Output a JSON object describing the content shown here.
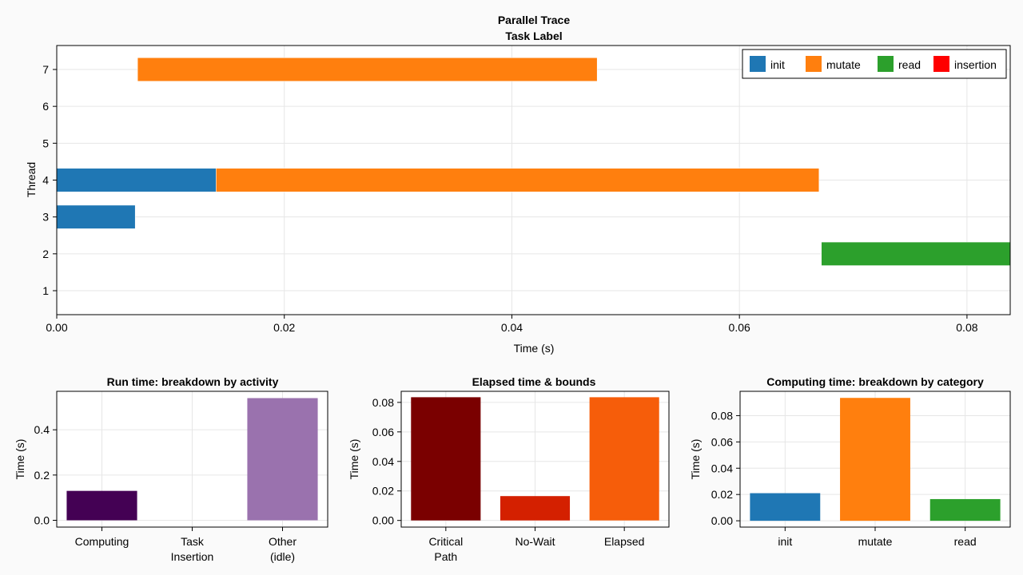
{
  "colors": {
    "init": "#1f77b4",
    "mutate": "#ff7f0e",
    "read": "#2ca02c",
    "insertion": "#ff0000",
    "computing": "#440154",
    "task_insertion": "#3b528b",
    "other_idle": "#9a72ae",
    "critical_path": "#7a0000",
    "no_wait": "#d42000",
    "elapsed": "#f65d0a"
  },
  "chart_data": [
    {
      "type": "gantt",
      "title": "Parallel Trace",
      "subtitle": "Task Label",
      "xlabel": "Time (s)",
      "ylabel": "Thread",
      "xlim": [
        0,
        0.0838
      ],
      "ylim": [
        0.35,
        7.65
      ],
      "xticks": [
        0.0,
        0.02,
        0.04,
        0.06,
        0.08
      ],
      "xtick_labels": [
        "0.00",
        "0.02",
        "0.04",
        "0.06",
        "0.08"
      ],
      "yticks": [
        1,
        2,
        3,
        4,
        5,
        6,
        7
      ],
      "ytick_labels": [
        "1",
        "2",
        "3",
        "4",
        "5",
        "6",
        "7"
      ],
      "grid": true,
      "legend_position": "top-right",
      "legend": [
        "init",
        "mutate",
        "read",
        "insertion"
      ],
      "tasks": [
        {
          "thread": 7,
          "start": 0.0071,
          "end": 0.0475,
          "label": "mutate"
        },
        {
          "thread": 4,
          "start": 0.0,
          "end": 0.014,
          "label": "init"
        },
        {
          "thread": 4,
          "start": 0.014,
          "end": 0.067,
          "label": "mutate"
        },
        {
          "thread": 3,
          "start": 0.0,
          "end": 0.0069,
          "label": "init"
        },
        {
          "thread": 2,
          "start": 0.0672,
          "end": 0.0838,
          "label": "read"
        }
      ]
    },
    {
      "type": "bar",
      "title": "Run time: breakdown by activity",
      "xlabel": "",
      "ylabel": "Time (s)",
      "ylim": [
        -0.03,
        0.57
      ],
      "yticks": [
        0.0,
        0.2,
        0.4
      ],
      "ytick_labels": [
        "0.0",
        "0.2",
        "0.4"
      ],
      "grid": true,
      "categories": [
        "Computing",
        "Task\nInsertion",
        "Other\n(idle)"
      ],
      "values": [
        0.13,
        0.0,
        0.54
      ],
      "color_keys": [
        "computing",
        "task_insertion",
        "other_idle"
      ]
    },
    {
      "type": "bar",
      "title": "Elapsed time & bounds",
      "xlabel": "",
      "ylabel": "Time (s)",
      "ylim": [
        -0.0045,
        0.0875
      ],
      "yticks": [
        0.0,
        0.02,
        0.04,
        0.06,
        0.08
      ],
      "ytick_labels": [
        "0.00",
        "0.02",
        "0.04",
        "0.06",
        "0.08"
      ],
      "grid": true,
      "categories": [
        "Critical\nPath",
        "No-Wait",
        "Elapsed"
      ],
      "values": [
        0.0835,
        0.0165,
        0.0835
      ],
      "color_keys": [
        "critical_path",
        "no_wait",
        "elapsed"
      ]
    },
    {
      "type": "bar",
      "title": "Computing time: breakdown by category",
      "xlabel": "",
      "ylabel": "Time (s)",
      "ylim": [
        -0.0048,
        0.0985
      ],
      "yticks": [
        0.0,
        0.02,
        0.04,
        0.06,
        0.08
      ],
      "ytick_labels": [
        "0.00",
        "0.02",
        "0.04",
        "0.06",
        "0.08"
      ],
      "grid": true,
      "categories": [
        "init",
        "mutate",
        "read"
      ],
      "values": [
        0.021,
        0.0935,
        0.0165
      ],
      "color_keys": [
        "init",
        "mutate",
        "read"
      ]
    }
  ]
}
